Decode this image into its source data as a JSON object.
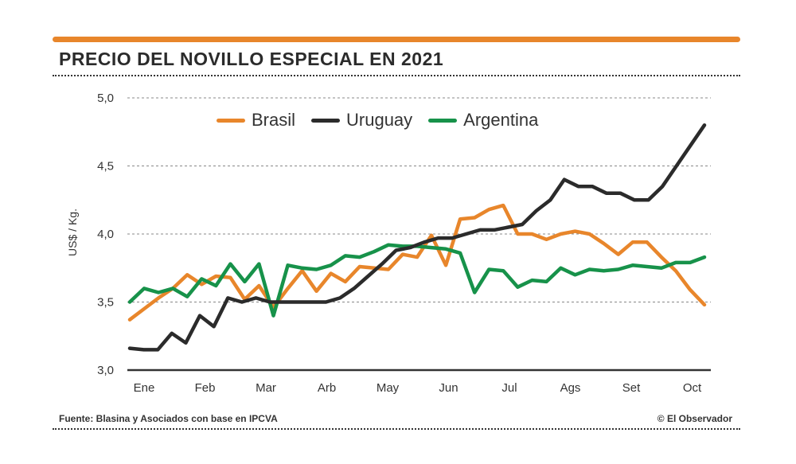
{
  "title": "PRECIO DEL NOVILLO ESPECIAL EN 2021",
  "footer": {
    "source": "Fuente: Blasina y Asociados con base en IPCVA",
    "credit": "© El Observador"
  },
  "colors": {
    "accent": "#e8862b",
    "brasil": "#e8862b",
    "uruguay": "#2b2b2b",
    "argentina": "#17924a"
  },
  "chart_data": {
    "type": "line",
    "title": "PRECIO DEL NOVILLO ESPECIAL EN 2021",
    "xlabel": "",
    "ylabel": "US$ / Kg.",
    "ylim": [
      3.0,
      5.0
    ],
    "y_ticks": [
      "3,0",
      "3,5",
      "4,0",
      "4,5",
      "5,0"
    ],
    "y_tick_values": [
      3.0,
      3.5,
      4.0,
      4.5,
      5.0
    ],
    "x_tick_labels": [
      "Ene",
      "Feb",
      "Mar",
      "Arb",
      "May",
      "Jun",
      "Jul",
      "Ags",
      "Set",
      "Oct"
    ],
    "grid": true,
    "legend_position": "top",
    "series": [
      {
        "name": "Brasil",
        "color": "#e8862b",
        "values": [
          3.37,
          3.45,
          3.53,
          3.6,
          3.7,
          3.63,
          3.69,
          3.68,
          3.52,
          3.62,
          3.46,
          3.6,
          3.73,
          3.58,
          3.71,
          3.65,
          3.76,
          3.75,
          3.74,
          3.85,
          3.83,
          3.99,
          3.77,
          4.11,
          4.12,
          4.18,
          4.21,
          4.0,
          4.0,
          3.96,
          4.0,
          4.02,
          4.0,
          3.93,
          3.85,
          3.94,
          3.94,
          3.83,
          3.73,
          3.59,
          3.48
        ]
      },
      {
        "name": "Uruguay",
        "color": "#2b2b2b",
        "values": [
          3.16,
          3.15,
          3.15,
          3.27,
          3.2,
          3.4,
          3.32,
          3.53,
          3.5,
          3.53,
          3.5,
          3.5,
          3.5,
          3.5,
          3.5,
          3.53,
          3.6,
          3.69,
          3.78,
          3.88,
          3.9,
          3.94,
          3.97,
          3.97,
          4.0,
          4.03,
          4.03,
          4.05,
          4.07,
          4.17,
          4.25,
          4.4,
          4.35,
          4.35,
          4.3,
          4.3,
          4.25,
          4.25,
          4.35,
          4.5,
          4.65,
          4.8
        ]
      },
      {
        "name": "Argentina",
        "color": "#17924a",
        "values": [
          3.5,
          3.6,
          3.57,
          3.6,
          3.54,
          3.67,
          3.62,
          3.78,
          3.65,
          3.78,
          3.4,
          3.77,
          3.75,
          3.74,
          3.77,
          3.84,
          3.83,
          3.87,
          3.92,
          3.91,
          3.91,
          3.9,
          3.89,
          3.86,
          3.57,
          3.74,
          3.73,
          3.61,
          3.66,
          3.65,
          3.75,
          3.7,
          3.74,
          3.73,
          3.74,
          3.77,
          3.76,
          3.75,
          3.79,
          3.79,
          3.83
        ]
      }
    ]
  }
}
